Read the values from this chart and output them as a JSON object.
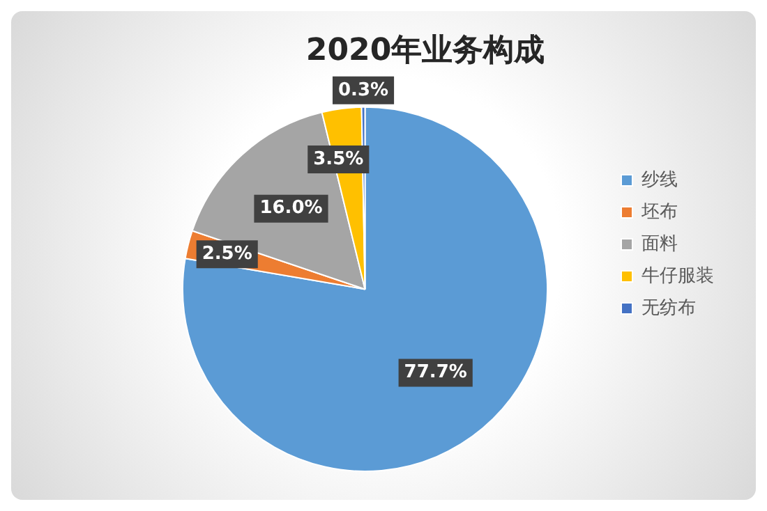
{
  "chart_data": {
    "type": "pie",
    "title": "2020年业务构成",
    "categories": [
      "纱线",
      "坯布",
      "面料",
      "牛仔服装",
      "无纺布"
    ],
    "values": [
      77.7,
      2.5,
      16.0,
      3.5,
      0.3
    ],
    "colors": [
      "#5b9bd5",
      "#ed7d31",
      "#a5a5a5",
      "#ffc000",
      "#4472c4"
    ],
    "value_labels": [
      "77.7%",
      "2.5%",
      "16.0%",
      "3.5%",
      "0.3%"
    ],
    "legend": "right"
  }
}
